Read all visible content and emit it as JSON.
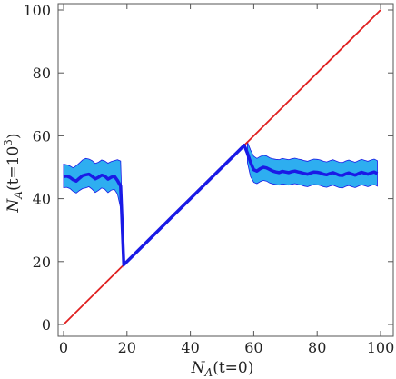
{
  "chart_data": {
    "type": "line",
    "xlabel": {
      "symbol": "N",
      "subscript": "A",
      "rest": "(t=0)"
    },
    "ylabel": {
      "symbol": "N",
      "subscript": "A",
      "rest": "(t=10",
      "sup": "3",
      "close": ")"
    },
    "xlim": [
      0,
      100
    ],
    "ylim": [
      0,
      100
    ],
    "xticks": [
      0,
      20,
      40,
      60,
      80,
      100
    ],
    "yticks": [
      0,
      20,
      40,
      60,
      80,
      100
    ],
    "grid": false,
    "reference_line": {
      "x": [
        0,
        100
      ],
      "y": [
        0,
        100
      ],
      "color": "#e02020"
    },
    "mean_series": {
      "color": "#1a1ae6",
      "x": [
        0,
        1,
        2,
        3,
        4,
        5,
        6,
        7,
        8,
        9,
        10,
        11,
        12,
        13,
        14,
        15,
        16,
        17,
        18,
        19,
        20,
        25,
        30,
        35,
        40,
        45,
        50,
        55,
        57,
        58,
        59,
        60,
        61,
        62,
        63,
        64,
        65,
        66,
        67,
        68,
        69,
        70,
        71,
        72,
        73,
        74,
        75,
        76,
        77,
        78,
        79,
        80,
        81,
        82,
        83,
        84,
        85,
        86,
        87,
        88,
        89,
        90,
        91,
        92,
        93,
        94,
        95,
        96,
        97,
        98,
        99
      ],
      "y": [
        47,
        47.2,
        46.8,
        46.0,
        45.6,
        46.5,
        47.3,
        47.6,
        47.8,
        47.1,
        46.3,
        46.8,
        47.5,
        47.2,
        46.2,
        46.8,
        47.2,
        45.8,
        44.0,
        19,
        20,
        25,
        30,
        35,
        40,
        45,
        50,
        55,
        57,
        54.5,
        51.5,
        49.2,
        48.8,
        49.5,
        50.0,
        49.8,
        49.3,
        48.8,
        48.5,
        48.3,
        48.7,
        48.5,
        48.3,
        48.6,
        48.8,
        48.5,
        48.3,
        48.0,
        47.8,
        48.2,
        48.5,
        48.4,
        48.2,
        47.8,
        47.6,
        48.0,
        48.3,
        47.9,
        47.5,
        47.4,
        47.9,
        48.2,
        47.8,
        47.5,
        48.0,
        48.4,
        48.1,
        47.8,
        48.2,
        48.5,
        48.0
      ]
    },
    "band": {
      "color": "#2eaef0",
      "x": [
        0,
        1,
        2,
        3,
        4,
        5,
        6,
        7,
        8,
        9,
        10,
        11,
        12,
        13,
        14,
        15,
        16,
        17,
        18,
        19,
        58,
        59,
        60,
        61,
        62,
        63,
        64,
        65,
        66,
        67,
        68,
        69,
        70,
        71,
        72,
        73,
        74,
        75,
        76,
        77,
        78,
        79,
        80,
        81,
        82,
        83,
        84,
        85,
        86,
        87,
        88,
        89,
        90,
        91,
        92,
        93,
        94,
        95,
        96,
        97,
        98,
        99
      ],
      "upper": [
        51,
        50.8,
        50.4,
        49.8,
        50.5,
        51.4,
        52.3,
        52.8,
        52.6,
        52.1,
        51.2,
        51.6,
        52.3,
        52.0,
        51.3,
        51.8,
        52.1,
        52.4,
        52.0,
        20,
        58,
        55.5,
        53.5,
        52.8,
        53.4,
        53.8,
        53.6,
        53.0,
        52.7,
        52.5,
        52.4,
        52.8,
        52.6,
        52.4,
        52.7,
        52.9,
        52.6,
        52.4,
        52.1,
        51.9,
        52.3,
        52.6,
        52.5,
        52.3,
        51.9,
        51.7,
        52.1,
        52.4,
        52.0,
        51.6,
        51.5,
        52.0,
        52.3,
        51.9,
        51.6,
        52.1,
        52.5,
        52.2,
        51.9,
        52.3,
        52.6,
        52.1
      ],
      "lower": [
        43.5,
        43.6,
        43.2,
        42.3,
        41.8,
        42.6,
        43.2,
        43.4,
        43.8,
        43.0,
        42.0,
        42.6,
        43.4,
        43.0,
        41.9,
        42.7,
        43.0,
        41.5,
        37.0,
        18,
        51.5,
        47.0,
        45.2,
        44.8,
        45.4,
        45.8,
        45.6,
        45.0,
        44.7,
        44.5,
        44.3,
        44.7,
        44.5,
        44.3,
        44.6,
        44.8,
        44.5,
        44.3,
        44.0,
        43.8,
        44.2,
        44.5,
        44.4,
        44.2,
        43.8,
        43.6,
        44.0,
        44.3,
        43.9,
        43.5,
        43.4,
        43.9,
        44.2,
        43.8,
        43.5,
        44.0,
        44.4,
        44.1,
        43.8,
        44.2,
        44.5,
        44.0
      ]
    }
  }
}
